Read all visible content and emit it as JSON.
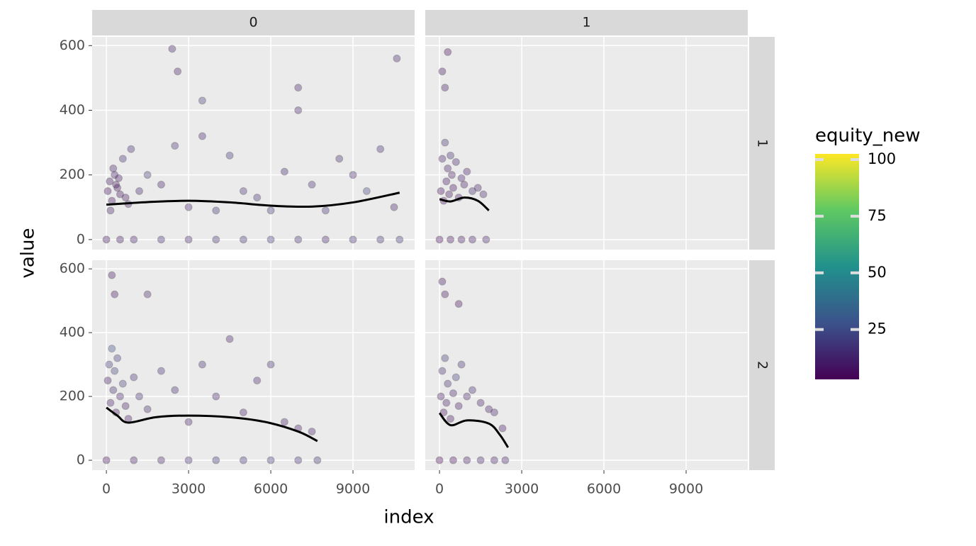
{
  "chart_data": {
    "type": "scatter",
    "x_label": "index",
    "y_label": "value",
    "col_labels": [
      "0",
      "1"
    ],
    "row_labels": [
      "1",
      "2"
    ],
    "xlim": [
      -520,
      11250
    ],
    "xticks": [
      0,
      3000,
      6000,
      9000
    ],
    "ylim": [
      -31,
      627
    ],
    "yticks": [
      0,
      200,
      400,
      600
    ],
    "grid": true,
    "point_color": "#333333",
    "smooth_color": "#000000",
    "colorbar": {
      "title": "equity_new",
      "lim": [
        3,
        102.5
      ],
      "ticks": [
        25,
        50,
        75,
        100
      ],
      "colors": [
        "#440154",
        "#3b528b",
        "#21918c",
        "#5ec962",
        "#fde725"
      ]
    },
    "panels": [
      {
        "points": {
          "x": [
            50,
            120,
            200,
            300,
            400,
            500,
            600,
            700,
            800,
            150,
            250,
            350,
            450,
            900,
            1200,
            1500,
            2000,
            2500,
            3000,
            3500,
            3500,
            4000,
            4500,
            5000,
            5500,
            6000,
            6500,
            7000,
            7500,
            8000,
            8500,
            9000,
            9500,
            10000,
            10500,
            10600,
            2400,
            2600,
            7000,
            0,
            500,
            1000,
            2000,
            3000,
            4000,
            5000,
            6000,
            7000,
            8000,
            9000,
            10000,
            10700
          ],
          "y": [
            150,
            180,
            120,
            200,
            160,
            140,
            250,
            130,
            110,
            90,
            220,
            170,
            190,
            280,
            150,
            200,
            170,
            290,
            100,
            430,
            320,
            90,
            260,
            150,
            130,
            90,
            210,
            400,
            170,
            90,
            250,
            200,
            150,
            280,
            100,
            560,
            590,
            520,
            470,
            0,
            0,
            0,
            0,
            0,
            0,
            0,
            0,
            0,
            0,
            0,
            0,
            0
          ],
          "c": [
            5,
            8,
            6,
            10,
            7,
            6,
            15,
            9,
            8,
            12,
            10,
            7,
            9,
            14,
            12,
            18,
            10,
            16,
            11,
            20,
            12,
            15,
            18,
            16,
            14,
            17,
            12,
            10,
            15,
            16,
            13,
            12,
            22,
            14,
            10,
            12,
            10,
            9,
            11,
            6,
            8,
            10,
            15,
            12,
            14,
            16,
            18,
            15,
            12,
            14,
            16,
            17
          ]
        },
        "smooth": {
          "x": [
            0,
            1500,
            3000,
            4500,
            6000,
            7500,
            9000,
            10700
          ],
          "y": [
            108,
            116,
            120,
            115,
            105,
            102,
            115,
            145
          ]
        }
      },
      {
        "points": {
          "x": [
            50,
            100,
            150,
            200,
            250,
            300,
            350,
            400,
            450,
            500,
            600,
            700,
            800,
            900,
            1000,
            1200,
            1400,
            1600,
            100,
            200,
            300,
            0,
            400,
            800,
            1200,
            1700
          ],
          "y": [
            150,
            250,
            120,
            300,
            180,
            220,
            140,
            260,
            200,
            160,
            240,
            130,
            190,
            170,
            210,
            150,
            160,
            140,
            520,
            470,
            580,
            0,
            0,
            0,
            0,
            0
          ],
          "c": [
            5,
            12,
            6,
            15,
            8,
            10,
            7,
            14,
            9,
            6,
            12,
            8,
            10,
            9,
            11,
            13,
            10,
            12,
            6,
            8,
            5,
            4,
            6,
            8,
            10,
            12
          ]
        },
        "smooth": {
          "x": [
            0,
            400,
            900,
            1400,
            1800
          ],
          "y": [
            125,
            118,
            130,
            120,
            90
          ]
        }
      },
      {
        "points": {
          "x": [
            50,
            100,
            150,
            200,
            250,
            300,
            350,
            400,
            500,
            600,
            700,
            800,
            1000,
            1200,
            1500,
            2000,
            2500,
            3000,
            3500,
            4000,
            4500,
            5000,
            5500,
            6000,
            6500,
            7000,
            7500,
            200,
            300,
            1500,
            0,
            1000,
            2000,
            3000,
            4000,
            5000,
            6000,
            7000,
            7700
          ],
          "y": [
            250,
            300,
            180,
            350,
            220,
            280,
            150,
            320,
            200,
            240,
            170,
            130,
            260,
            200,
            520,
            280,
            220,
            120,
            300,
            200,
            380,
            150,
            250,
            300,
            120,
            100,
            90,
            580,
            520,
            160,
            0,
            0,
            0,
            0,
            0,
            0,
            0,
            0,
            0
          ],
          "c": [
            8,
            20,
            10,
            25,
            15,
            22,
            8,
            18,
            12,
            20,
            10,
            9,
            16,
            14,
            12,
            15,
            13,
            10,
            14,
            12,
            11,
            10,
            12,
            13,
            10,
            9,
            11,
            6,
            7,
            12,
            5,
            10,
            12,
            14,
            15,
            16,
            17,
            15,
            14
          ]
        },
        "smooth": {
          "x": [
            0,
            400,
            800,
            1800,
            3000,
            4500,
            5800,
            7000,
            7700
          ],
          "y": [
            165,
            140,
            118,
            135,
            140,
            135,
            120,
            90,
            60
          ]
        }
      },
      {
        "points": {
          "x": [
            50,
            100,
            150,
            200,
            250,
            300,
            400,
            500,
            600,
            700,
            800,
            1000,
            1200,
            1500,
            1800,
            2000,
            2300,
            100,
            200,
            700,
            0,
            500,
            1000,
            1500,
            2000,
            2400
          ],
          "y": [
            200,
            280,
            150,
            320,
            180,
            240,
            130,
            210,
            260,
            170,
            300,
            200,
            220,
            180,
            160,
            150,
            100,
            560,
            520,
            490,
            0,
            0,
            0,
            0,
            0,
            0
          ],
          "c": [
            8,
            15,
            6,
            18,
            10,
            14,
            7,
            12,
            20,
            9,
            16,
            12,
            14,
            11,
            10,
            12,
            9,
            6,
            7,
            5,
            4,
            6,
            9,
            12,
            10,
            11
          ]
        },
        "smooth": {
          "x": [
            0,
            400,
            1000,
            1800,
            2200,
            2500
          ],
          "y": [
            148,
            110,
            125,
            115,
            80,
            40
          ]
        }
      }
    ]
  }
}
